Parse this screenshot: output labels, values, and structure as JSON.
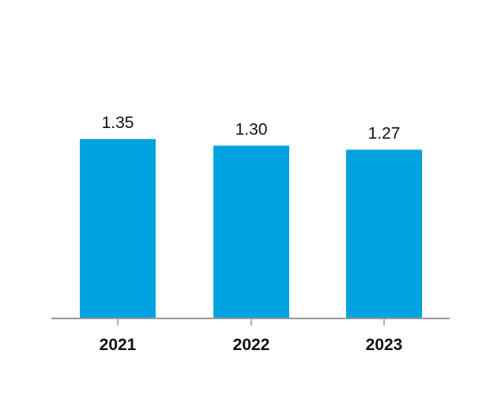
{
  "chart_data": {
    "type": "bar",
    "title": "",
    "xlabel": "",
    "ylabel": "",
    "categories": [
      "2021",
      "2022",
      "2023"
    ],
    "values": [
      1.35,
      1.3,
      1.27
    ],
    "value_labels": [
      "1.35",
      "1.30",
      "1.27"
    ],
    "ylim": [
      0,
      1.35
    ],
    "grid": false,
    "bar_color": "#00A3E0",
    "axis_color": "#999999"
  }
}
